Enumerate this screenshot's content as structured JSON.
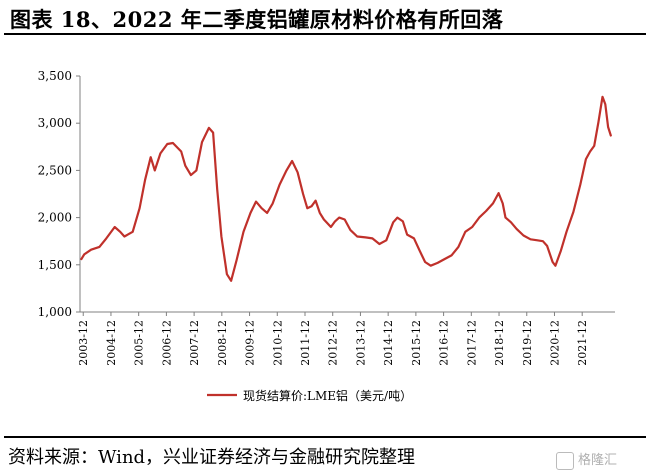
{
  "title": "图表 18、2022 年二季度铝罐原材料价格有所回落",
  "source": "资料来源：Wind，兴业证券经济与金融研究院整理",
  "watermark": "格隆汇",
  "colors": {
    "line": "#c0312b",
    "axis": "#808080",
    "text": "#000000"
  },
  "chart_data": {
    "type": "line",
    "x_tick_labels": [
      "2003-12",
      "2004-12",
      "2005-12",
      "2006-12",
      "2007-12",
      "2008-12",
      "2009-12",
      "2010-12",
      "2011-12",
      "2012-12",
      "2013-12",
      "2014-12",
      "2015-12",
      "2016-12",
      "2017-12",
      "2018-12",
      "2019-12",
      "2020-12",
      "2021-12"
    ],
    "y_tick_labels": [
      "1,000",
      "1,500",
      "2,000",
      "2,500",
      "3,000",
      "3,500"
    ],
    "ylim": [
      1000,
      3500
    ],
    "grid": false,
    "legend_position": "bottom",
    "series": [
      {
        "name": "现货结算价:LME铝（美元/吨）",
        "color": "#c0312b",
        "points": [
          [
            2003.85,
            1560
          ],
          [
            2003.95,
            1610
          ],
          [
            2004.2,
            1660
          ],
          [
            2004.5,
            1690
          ],
          [
            2004.75,
            1780
          ],
          [
            2005.05,
            1900
          ],
          [
            2005.25,
            1850
          ],
          [
            2005.4,
            1800
          ],
          [
            2005.7,
            1850
          ],
          [
            2005.95,
            2100
          ],
          [
            2006.15,
            2400
          ],
          [
            2006.35,
            2640
          ],
          [
            2006.5,
            2500
          ],
          [
            2006.7,
            2680
          ],
          [
            2006.95,
            2780
          ],
          [
            2007.15,
            2790
          ],
          [
            2007.45,
            2700
          ],
          [
            2007.6,
            2550
          ],
          [
            2007.8,
            2450
          ],
          [
            2008.0,
            2500
          ],
          [
            2008.2,
            2800
          ],
          [
            2008.45,
            2950
          ],
          [
            2008.6,
            2900
          ],
          [
            2008.75,
            2300
          ],
          [
            2008.9,
            1800
          ],
          [
            2009.1,
            1400
          ],
          [
            2009.25,
            1330
          ],
          [
            2009.45,
            1550
          ],
          [
            2009.7,
            1850
          ],
          [
            2009.95,
            2050
          ],
          [
            2010.15,
            2170
          ],
          [
            2010.35,
            2100
          ],
          [
            2010.55,
            2050
          ],
          [
            2010.75,
            2150
          ],
          [
            2011.0,
            2350
          ],
          [
            2011.25,
            2500
          ],
          [
            2011.45,
            2600
          ],
          [
            2011.65,
            2480
          ],
          [
            2011.85,
            2250
          ],
          [
            2012.0,
            2100
          ],
          [
            2012.15,
            2120
          ],
          [
            2012.3,
            2180
          ],
          [
            2012.45,
            2050
          ],
          [
            2012.6,
            1980
          ],
          [
            2012.85,
            1900
          ],
          [
            2013.0,
            1960
          ],
          [
            2013.15,
            2000
          ],
          [
            2013.35,
            1980
          ],
          [
            2013.55,
            1870
          ],
          [
            2013.8,
            1800
          ],
          [
            2014.1,
            1790
          ],
          [
            2014.35,
            1780
          ],
          [
            2014.6,
            1720
          ],
          [
            2014.85,
            1760
          ],
          [
            2015.1,
            1950
          ],
          [
            2015.25,
            2000
          ],
          [
            2015.45,
            1960
          ],
          [
            2015.6,
            1820
          ],
          [
            2015.85,
            1780
          ],
          [
            2016.05,
            1650
          ],
          [
            2016.25,
            1530
          ],
          [
            2016.45,
            1490
          ],
          [
            2016.7,
            1520
          ],
          [
            2016.95,
            1560
          ],
          [
            2017.2,
            1600
          ],
          [
            2017.45,
            1690
          ],
          [
            2017.7,
            1850
          ],
          [
            2017.95,
            1900
          ],
          [
            2018.2,
            2000
          ],
          [
            2018.45,
            2070
          ],
          [
            2018.7,
            2150
          ],
          [
            2018.9,
            2260
          ],
          [
            2019.05,
            2150
          ],
          [
            2019.15,
            2000
          ],
          [
            2019.35,
            1950
          ],
          [
            2019.55,
            1880
          ],
          [
            2019.8,
            1810
          ],
          [
            2020.05,
            1770
          ],
          [
            2020.3,
            1760
          ],
          [
            2020.5,
            1750
          ],
          [
            2020.65,
            1700
          ],
          [
            2020.85,
            1530
          ],
          [
            2020.95,
            1490
          ],
          [
            2021.15,
            1650
          ],
          [
            2021.35,
            1850
          ],
          [
            2021.6,
            2060
          ],
          [
            2021.85,
            2350
          ],
          [
            2022.05,
            2620
          ],
          [
            2022.2,
            2700
          ],
          [
            2022.35,
            2760
          ],
          [
            2022.5,
            3010
          ],
          [
            2022.65,
            3280
          ],
          [
            2022.75,
            3200
          ],
          [
            2022.85,
            2960
          ],
          [
            2022.95,
            2870
          ]
        ]
      }
    ]
  }
}
